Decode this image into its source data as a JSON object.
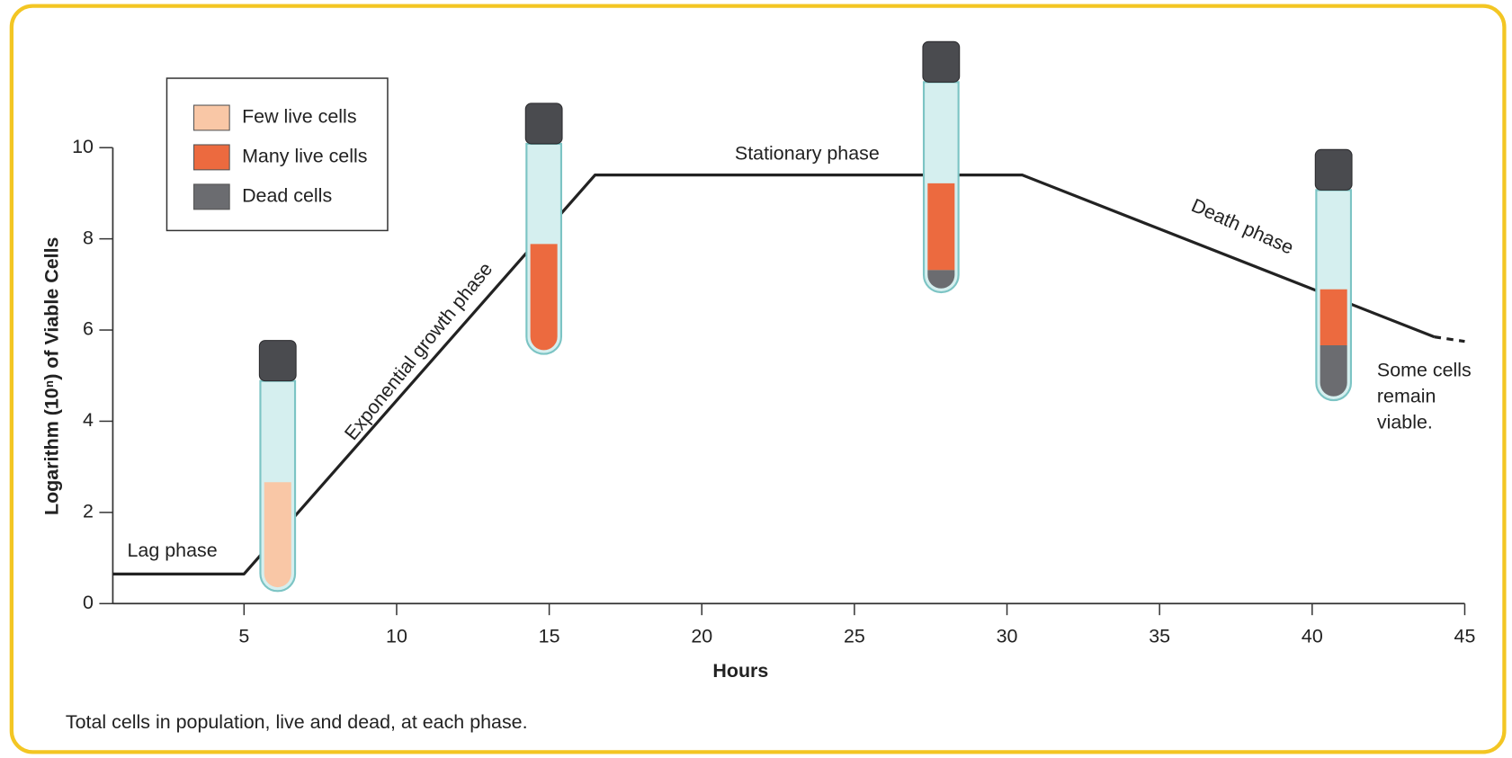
{
  "chart_data": {
    "type": "line",
    "x": [
      0.7,
      5,
      16.5,
      30.5,
      44
    ],
    "values": [
      0.65,
      0.65,
      9.4,
      9.4,
      5.85
    ],
    "color": "#222222",
    "extension": {
      "x": [
        44,
        45
      ],
      "values": [
        5.85,
        5.75
      ]
    },
    "xlim": [
      0.7,
      45
    ],
    "ylim": [
      0,
      10
    ],
    "xticks": [
      5,
      10,
      15,
      20,
      25,
      30,
      35,
      40,
      45
    ],
    "yticks": [
      0,
      2,
      4,
      6,
      8,
      10
    ],
    "xlabel": "Hours",
    "ylabel": "Logarithm (10ⁿ) of Viable Cells",
    "legend": [
      {
        "name": "Few live cells",
        "color": "#f9c7a6"
      },
      {
        "name": "Many live cells",
        "color": "#ec6a3f"
      },
      {
        "name": "Dead cells",
        "color": "#6b6c70"
      }
    ],
    "annotations": [
      "Lag phase",
      "Exponential growth phase",
      "Stationary phase",
      "Death phase"
    ],
    "note_lines": [
      "Some cells",
      "remain",
      "viable."
    ],
    "caption": "Total cells in population, live and dead, at each phase."
  }
}
